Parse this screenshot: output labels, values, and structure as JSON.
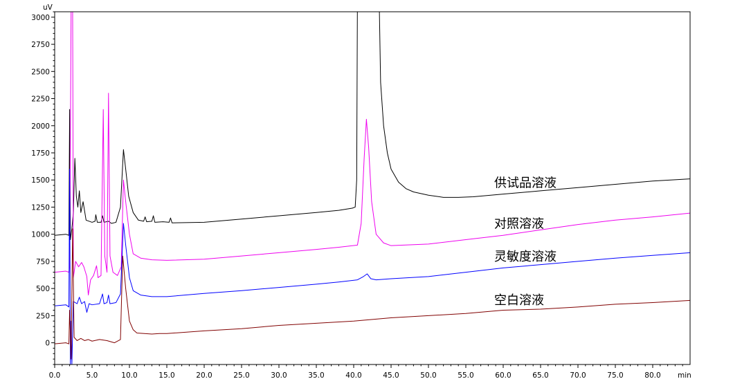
{
  "chart_data": {
    "type": "line",
    "title": "",
    "xlabel": "min",
    "ylabel": "uV",
    "xlim": [
      0,
      85
    ],
    "ylim": [
      -200,
      3050
    ],
    "x_ticks": [
      0,
      5,
      10,
      15,
      20,
      25,
      30,
      35,
      40,
      45,
      50,
      55,
      60,
      65,
      70,
      75,
      80
    ],
    "x_tick_labels": [
      "0.0",
      "5.0",
      "10.0",
      "15.0",
      "20.0",
      "25.0",
      "30.0",
      "35.0",
      "40.0",
      "45.0",
      "50.0",
      "55.0",
      "60.0",
      "65.0",
      "70.0",
      "75.0",
      "80.0"
    ],
    "y_ticks": [
      0,
      250,
      500,
      750,
      1000,
      1250,
      1500,
      1750,
      2000,
      2250,
      2500,
      2750,
      3000
    ],
    "y_tick_labels": [
      "0",
      "250",
      "500",
      "750",
      "1000",
      "1250",
      "1500",
      "1750",
      "2000",
      "2250",
      "2500",
      "2750",
      "3000"
    ],
    "grid": false,
    "legend": "none",
    "series": [
      {
        "name": "供试品溶液",
        "color": "#000000",
        "points": [
          [
            0,
            990
          ],
          [
            1.5,
            1000
          ],
          [
            1.9,
            990
          ],
          [
            2.0,
            2150
          ],
          [
            2.1,
            950
          ],
          [
            2.3,
            1050
          ],
          [
            2.5,
            1200
          ],
          [
            2.7,
            1700
          ],
          [
            2.9,
            1350
          ],
          [
            3.1,
            1250
          ],
          [
            3.3,
            1400
          ],
          [
            3.5,
            1200
          ],
          [
            3.8,
            1300
          ],
          [
            4.2,
            1130
          ],
          [
            5.0,
            1110
          ],
          [
            5.4,
            1120
          ],
          [
            5.5,
            1180
          ],
          [
            5.7,
            1110
          ],
          [
            6.2,
            1110
          ],
          [
            6.4,
            1170
          ],
          [
            6.6,
            1110
          ],
          [
            7.2,
            1120
          ],
          [
            7.6,
            1100
          ],
          [
            8.2,
            1110
          ],
          [
            8.8,
            1250
          ],
          [
            9.2,
            1780
          ],
          [
            9.5,
            1600
          ],
          [
            9.9,
            1350
          ],
          [
            10.5,
            1200
          ],
          [
            11.2,
            1130
          ],
          [
            11.9,
            1120
          ],
          [
            12.1,
            1160
          ],
          [
            12.3,
            1115
          ],
          [
            13.0,
            1120
          ],
          [
            13.2,
            1170
          ],
          [
            13.4,
            1110
          ],
          [
            14.5,
            1115
          ],
          [
            15.3,
            1110
          ],
          [
            15.5,
            1150
          ],
          [
            15.7,
            1105
          ],
          [
            20,
            1110
          ],
          [
            25,
            1140
          ],
          [
            30,
            1170
          ],
          [
            35,
            1200
          ],
          [
            38,
            1220
          ],
          [
            39.8,
            1240
          ],
          [
            40.2,
            1250
          ],
          [
            40.4,
            1500
          ],
          [
            40.5,
            3200
          ],
          [
            43.4,
            3200
          ],
          [
            43.6,
            2400
          ],
          [
            44.0,
            2000
          ],
          [
            44.5,
            1750
          ],
          [
            45,
            1600
          ],
          [
            46,
            1480
          ],
          [
            47,
            1420
          ],
          [
            48,
            1390
          ],
          [
            50,
            1360
          ],
          [
            52,
            1340
          ],
          [
            54,
            1340
          ],
          [
            56,
            1345
          ],
          [
            60,
            1370
          ],
          [
            65,
            1400
          ],
          [
            70,
            1430
          ],
          [
            75,
            1460
          ],
          [
            80,
            1490
          ],
          [
            85,
            1510
          ]
        ]
      },
      {
        "name": "对照溶液",
        "color": "#ee00ee",
        "points": [
          [
            0,
            650
          ],
          [
            1.5,
            660
          ],
          [
            1.9,
            650
          ],
          [
            2.0,
            700
          ],
          [
            2.2,
            3100
          ],
          [
            2.4,
            3100
          ],
          [
            2.5,
            600
          ],
          [
            2.8,
            750
          ],
          [
            3.2,
            700
          ],
          [
            3.6,
            740
          ],
          [
            3.9,
            700
          ],
          [
            4.3,
            610
          ],
          [
            4.5,
            440
          ],
          [
            4.8,
            580
          ],
          [
            5.2,
            620
          ],
          [
            5.6,
            710
          ],
          [
            5.8,
            600
          ],
          [
            6.2,
            620
          ],
          [
            6.5,
            2150
          ],
          [
            6.7,
            800
          ],
          [
            7.0,
            650
          ],
          [
            7.2,
            2300
          ],
          [
            7.4,
            800
          ],
          [
            7.8,
            650
          ],
          [
            8.4,
            620
          ],
          [
            8.9,
            700
          ],
          [
            9.2,
            1500
          ],
          [
            9.5,
            1300
          ],
          [
            10,
            1000
          ],
          [
            10.5,
            820
          ],
          [
            11.5,
            780
          ],
          [
            13,
            765
          ],
          [
            15,
            760
          ],
          [
            20,
            770
          ],
          [
            25,
            800
          ],
          [
            30,
            830
          ],
          [
            35,
            860
          ],
          [
            38,
            880
          ],
          [
            40.5,
            900
          ],
          [
            41.0,
            1100
          ],
          [
            41.4,
            1700
          ],
          [
            41.7,
            2060
          ],
          [
            42.0,
            1800
          ],
          [
            42.4,
            1300
          ],
          [
            43,
            1000
          ],
          [
            44,
            920
          ],
          [
            45,
            895
          ],
          [
            50,
            910
          ],
          [
            55,
            950
          ],
          [
            60,
            990
          ],
          [
            65,
            1040
          ],
          [
            70,
            1090
          ],
          [
            75,
            1130
          ],
          [
            80,
            1160
          ],
          [
            85,
            1195
          ]
        ]
      },
      {
        "name": "灵敏度溶液",
        "color": "#0000ff",
        "points": [
          [
            0,
            340
          ],
          [
            1.5,
            350
          ],
          [
            1.9,
            330
          ],
          [
            2.0,
            1600
          ],
          [
            2.1,
            -200
          ],
          [
            2.2,
            200
          ],
          [
            2.3,
            -200
          ],
          [
            2.5,
            380
          ],
          [
            3.0,
            360
          ],
          [
            3.3,
            420
          ],
          [
            3.6,
            360
          ],
          [
            4.0,
            380
          ],
          [
            4.3,
            280
          ],
          [
            4.6,
            360
          ],
          [
            5,
            350
          ],
          [
            6,
            360
          ],
          [
            6.4,
            450
          ],
          [
            6.6,
            360
          ],
          [
            7.0,
            370
          ],
          [
            7.2,
            440
          ],
          [
            7.4,
            360
          ],
          [
            8.2,
            370
          ],
          [
            8.8,
            450
          ],
          [
            9.2,
            1100
          ],
          [
            9.5,
            900
          ],
          [
            10,
            600
          ],
          [
            10.5,
            480
          ],
          [
            11.5,
            440
          ],
          [
            13,
            425
          ],
          [
            15,
            425
          ],
          [
            20,
            455
          ],
          [
            25,
            480
          ],
          [
            30,
            510
          ],
          [
            35,
            540
          ],
          [
            38,
            560
          ],
          [
            40.5,
            580
          ],
          [
            41.3,
            610
          ],
          [
            41.8,
            635
          ],
          [
            42.3,
            590
          ],
          [
            43,
            580
          ],
          [
            45,
            590
          ],
          [
            50,
            610
          ],
          [
            55,
            650
          ],
          [
            60,
            690
          ],
          [
            65,
            720
          ],
          [
            70,
            750
          ],
          [
            75,
            780
          ],
          [
            80,
            805
          ],
          [
            85,
            830
          ]
        ]
      },
      {
        "name": "空白溶液",
        "color": "#800000",
        "points": [
          [
            0,
            -10
          ],
          [
            1.5,
            0
          ],
          [
            1.9,
            -10
          ],
          [
            2.0,
            300
          ],
          [
            2.2,
            -150
          ],
          [
            2.4,
            1050
          ],
          [
            2.6,
            50
          ],
          [
            3.0,
            20
          ],
          [
            3.5,
            40
          ],
          [
            4.0,
            20
          ],
          [
            4.5,
            30
          ],
          [
            5,
            15
          ],
          [
            6,
            30
          ],
          [
            7,
            20
          ],
          [
            8,
            0
          ],
          [
            8.8,
            30
          ],
          [
            9.1,
            800
          ],
          [
            9.5,
            500
          ],
          [
            10,
            200
          ],
          [
            10.5,
            120
          ],
          [
            11,
            90
          ],
          [
            12,
            85
          ],
          [
            13,
            80
          ],
          [
            14,
            85
          ],
          [
            15,
            85
          ],
          [
            20,
            110
          ],
          [
            25,
            130
          ],
          [
            30,
            160
          ],
          [
            35,
            180
          ],
          [
            40,
            200
          ],
          [
            45,
            230
          ],
          [
            50,
            250
          ],
          [
            55,
            270
          ],
          [
            60,
            300
          ],
          [
            65,
            310
          ],
          [
            70,
            330
          ],
          [
            75,
            355
          ],
          [
            80,
            370
          ],
          [
            85,
            390
          ]
        ]
      }
    ],
    "annotations": [
      {
        "text": "供试品溶液",
        "series": 0
      },
      {
        "text": "对照溶液",
        "series": 1
      },
      {
        "text": "灵敏度溶液",
        "series": 2
      },
      {
        "text": "空白溶液",
        "series": 3
      }
    ]
  }
}
